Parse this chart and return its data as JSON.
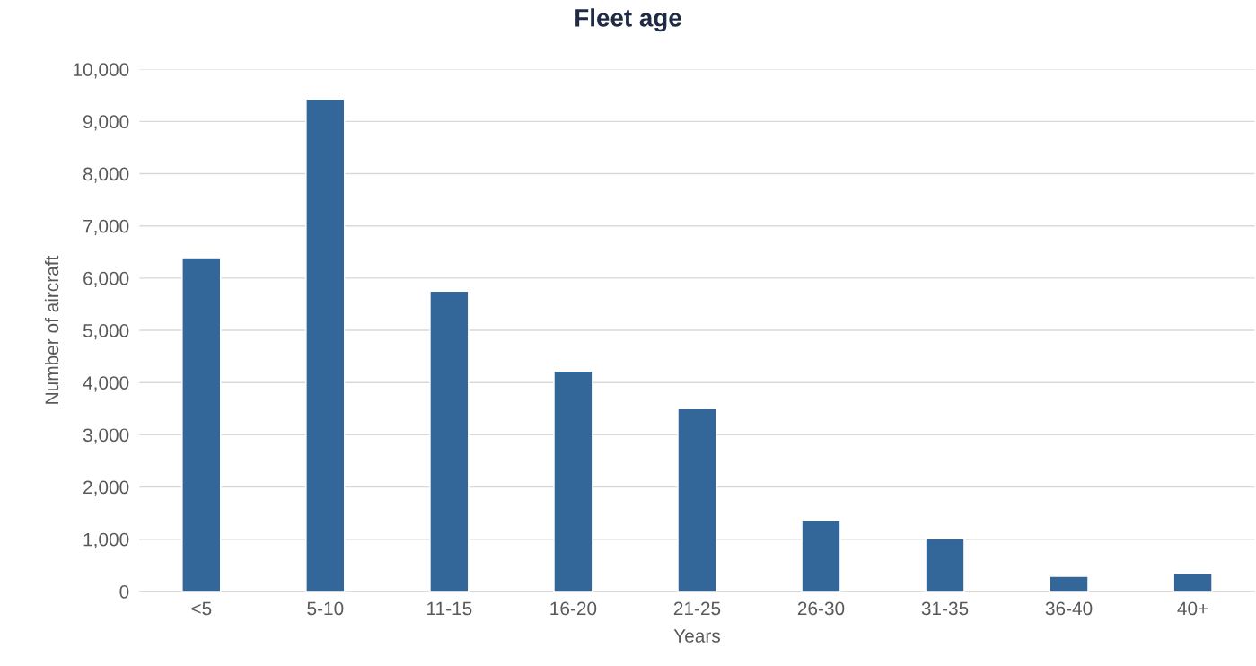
{
  "chart_data": {
    "type": "bar",
    "title": "Fleet age",
    "xlabel": "Years",
    "ylabel": "Number of aircraft",
    "categories": [
      "<5",
      "5-10",
      "11-15",
      "16-20",
      "21-25",
      "26-30",
      "31-35",
      "36-40",
      "40+"
    ],
    "values": [
      6390,
      9430,
      5750,
      4220,
      3500,
      1360,
      1010,
      290,
      340
    ],
    "color": "#336699",
    "ylim": [
      0,
      10000
    ],
    "yticks": [
      0,
      {
        "value": 1000,
        "label": "1,000"
      },
      {
        "value": 2000,
        "label": "2,000"
      },
      {
        "value": 3000,
        "label": "3,000"
      },
      {
        "value": 4000,
        "label": "4,000"
      },
      {
        "value": 5000,
        "label": "5,000"
      },
      {
        "value": 6000,
        "label": "6,000"
      },
      {
        "value": 7000,
        "label": "7,000"
      },
      {
        "value": 8000,
        "label": "8,000"
      },
      {
        "value": 9000,
        "label": "9,000"
      },
      {
        "value": 10000,
        "label": "10,000"
      }
    ],
    "grid": "y",
    "legend": false
  }
}
